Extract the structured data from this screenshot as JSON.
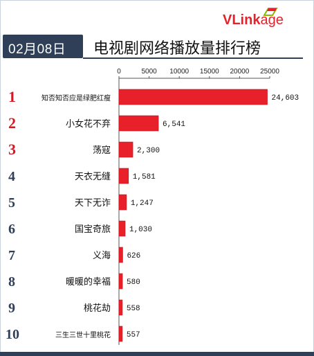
{
  "brand": {
    "logo_v": "V",
    "logo_link": "Link",
    "logo_age": "age"
  },
  "header": {
    "date": "02月08日",
    "title": "电视剧网络播放量排行榜"
  },
  "colors": {
    "bar": "#e8202a",
    "bar_edge": "#c31218",
    "rank_top": "#d11a22",
    "rank_rest": "#2f3f57",
    "date_bg": "#2f3f57"
  },
  "chart_data": {
    "type": "bar",
    "orientation": "horizontal",
    "title": "电视剧网络播放量排行榜",
    "xlim": [
      0,
      25000
    ],
    "x_ticks": [
      "0",
      "5000",
      "10000",
      "15000",
      "20000",
      "25000"
    ],
    "x_tick_values": [
      0,
      5000,
      10000,
      15000,
      20000,
      25000
    ],
    "ranks": [
      "1",
      "2",
      "3",
      "4",
      "5",
      "6",
      "7",
      "8",
      "9",
      "10"
    ],
    "categories": [
      "知否知否应是绿肥红瘦",
      "小女花不弃",
      "荡寇",
      "天衣无缝",
      "天下无诈",
      "国宝奇旅",
      "义海",
      "暖暖的幸福",
      "桃花劫",
      "三生三世十里桃花"
    ],
    "values": [
      24603,
      6541,
      2300,
      1581,
      1247,
      1030,
      626,
      580,
      558,
      557
    ],
    "value_labels": [
      "24,603",
      "6,541",
      "2,300",
      "1,581",
      "1,247",
      "1,030",
      "626",
      "580",
      "558",
      "557"
    ]
  }
}
